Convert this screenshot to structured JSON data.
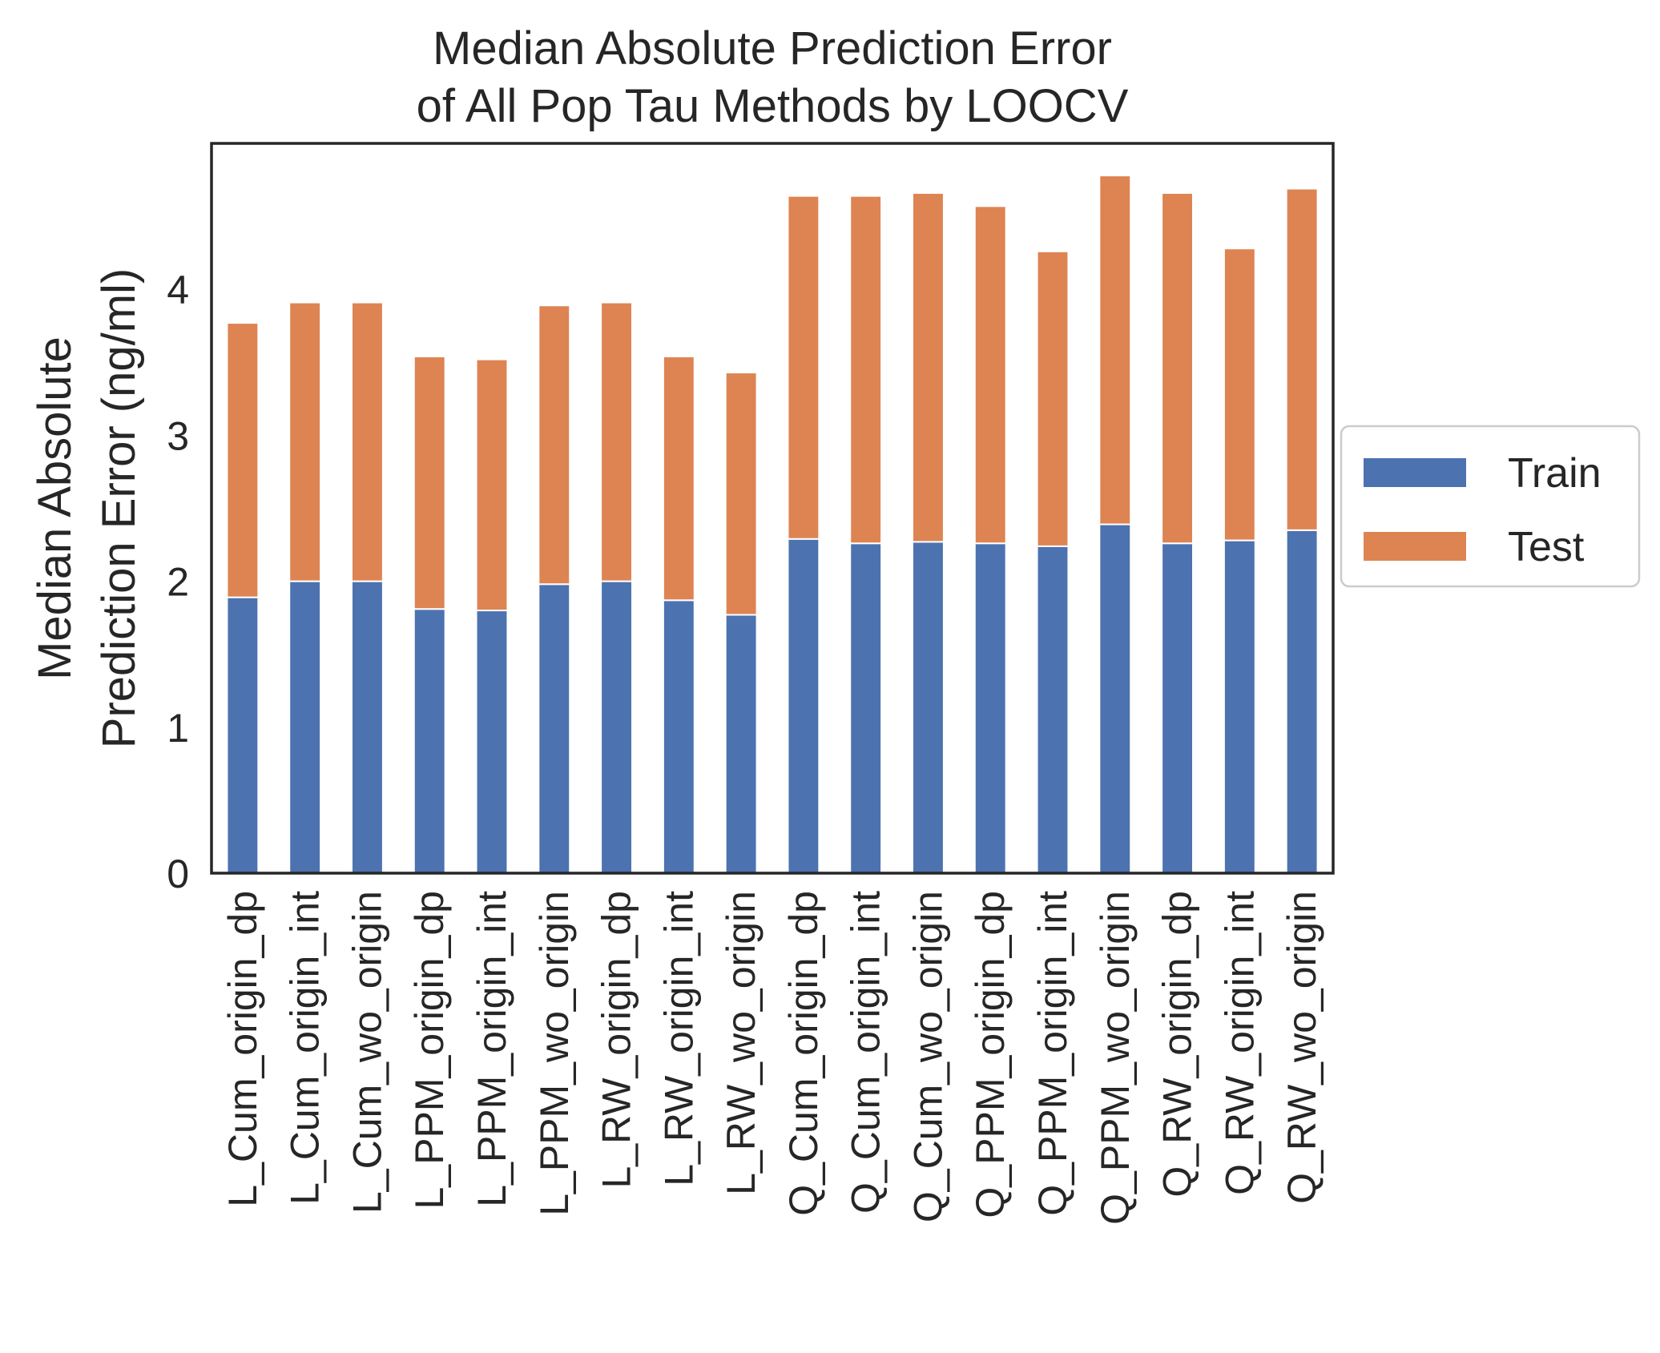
{
  "chart_data": {
    "type": "bar",
    "stacked": true,
    "title": [
      "Median Absolute Prediction Error",
      "of All Pop Tau Methods by LOOCV"
    ],
    "ylabel": [
      "Median Absolute",
      "Prediction Error (ng/ml)"
    ],
    "xlabel": "",
    "ylim": [
      0,
      5.0
    ],
    "yticks": [
      0,
      1,
      2,
      3,
      4
    ],
    "grid": false,
    "legend_position": "center-right-outside",
    "categories": [
      "L_Cum_origin_dp",
      "L_Cum_origin_int",
      "L_Cum_wo_origin",
      "L_PPM_origin_dp",
      "L_PPM_origin_int",
      "L_PPM_wo_origin",
      "L_RW_origin_dp",
      "L_RW_origin_int",
      "L_RW_wo_origin",
      "Q_Cum_origin_dp",
      "Q_Cum_origin_int",
      "Q_Cum_wo_origin",
      "Q_PPM_origin_dp",
      "Q_PPM_origin_int",
      "Q_PPM_wo_origin",
      "Q_RW_origin_dp",
      "Q_RW_origin_int",
      "Q_RW_wo_origin"
    ],
    "series": [
      {
        "name": "Train",
        "color": "#4c72b0",
        "values": [
          1.89,
          2.0,
          2.0,
          1.81,
          1.8,
          1.98,
          2.0,
          1.87,
          1.77,
          2.29,
          2.26,
          2.27,
          2.26,
          2.24,
          2.39,
          2.26,
          2.28,
          2.35
        ]
      },
      {
        "name": "Test",
        "color": "#dd8452",
        "values": [
          1.88,
          1.91,
          1.91,
          1.73,
          1.72,
          1.91,
          1.91,
          1.67,
          1.66,
          2.35,
          2.38,
          2.39,
          2.31,
          2.02,
          2.39,
          2.4,
          2.0,
          2.34
        ]
      }
    ]
  }
}
